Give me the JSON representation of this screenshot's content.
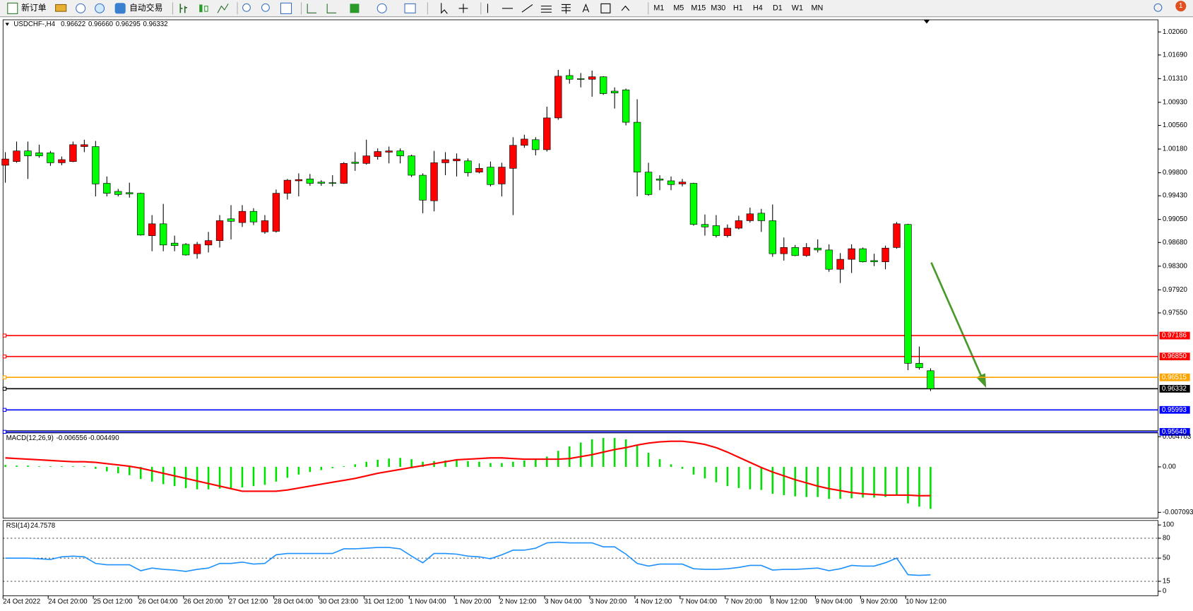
{
  "toolbar": {
    "new_order": "新订单",
    "auto_trading": "自动交易",
    "timeframes": [
      "M1",
      "M5",
      "M15",
      "M30",
      "H1",
      "H4",
      "D1",
      "W1",
      "MN"
    ],
    "alerts": "1"
  },
  "chart_data": [
    {
      "type": "candlestick",
      "title": "USDCHF-,H4",
      "last_high_label": "0.96660",
      "categories": [
        "24 Oct 2022",
        null,
        null,
        null,
        "24 Oct 20:00",
        null,
        null,
        null,
        "25 Oct 12:00",
        null,
        null,
        null,
        "26 Oct 04:00",
        null,
        null,
        null,
        "26 Oct 20:00",
        null,
        null,
        null,
        "27 Oct 12:00",
        null,
        null,
        null,
        "28 Oct 04:00",
        null,
        null,
        null,
        "30 Oct 23:00",
        null,
        null,
        null,
        "31 Oct 12:00",
        null,
        null,
        null,
        "1 Nov 04:00",
        null,
        null,
        null,
        "1 Nov 20:00",
        null,
        null,
        null,
        "2 Nov 12:00",
        null,
        null,
        null,
        "3 Nov 04:00",
        null,
        null,
        null,
        "3 Nov 20:00",
        null,
        null,
        null,
        "4 Nov 12:00",
        null,
        null,
        null,
        "7 Nov 04:00",
        null,
        null,
        null,
        "7 Nov 20:00",
        null,
        null,
        null,
        "8 Nov 12:00",
        null,
        null,
        null,
        "9 Nov 04:00",
        null,
        null,
        null,
        "9 Nov 20:00",
        null,
        null,
        null,
        "10 Nov 12:00",
        null,
        null
      ],
      "open": [
        0.9992,
        0.9998,
        1.0015,
        1.0012,
        1.0012,
        0.9996,
        0.9998,
        1.0022,
        1.0022,
        0.9963,
        0.995,
        0.9948,
        0.9947,
        0.9879,
        0.9898,
        0.9867,
        0.9865,
        0.985,
        0.9864,
        0.9871,
        0.9906,
        0.99,
        0.9918,
        0.9885,
        0.9886,
        0.9947,
        0.9967,
        0.997,
        0.9965,
        0.9964,
        0.9963,
        0.9997,
        0.9995,
        1.0006,
        1.0013,
        1.0015,
        1.0007,
        0.9976,
        0.9935,
        0.9996,
        0.9999,
        0.9999,
        0.9981,
        0.9989,
        0.9962,
        0.9987,
        1.0024,
        1.0033,
        1.0017,
        1.0068,
        1.0136,
        1.0131,
        1.013,
        1.0134,
        1.0111,
        1.0113,
        1.0061,
        0.9981,
        0.997,
        0.9967,
        0.9962,
        0.9963,
        0.9897,
        0.9895,
        0.9879,
        0.9891,
        0.9903,
        0.9915,
        0.9903,
        0.985,
        0.986,
        0.9847,
        0.9859,
        0.9856,
        0.9825,
        0.9841,
        0.9858,
        0.9839,
        0.9837,
        0.986,
        0.9897,
        0.9674,
        0.96622
      ],
      "high": [
        1.0013,
        1.003,
        1.003,
        1.0025,
        1.0015,
        1.0006,
        1.003,
        1.0033,
        1.0031,
        0.9974,
        0.9954,
        0.9964,
        0.9948,
        0.9912,
        0.993,
        0.9879,
        0.9867,
        0.9869,
        0.9885,
        0.9912,
        0.9928,
        0.9928,
        0.9923,
        0.9912,
        0.9953,
        0.997,
        0.9979,
        0.9978,
        0.9968,
        0.9976,
        0.9997,
        1.0013,
        1.0033,
        1.0019,
        1.0022,
        1.0019,
        1.0009,
        0.9979,
        1.0015,
        1.0013,
        1.0011,
        1.0003,
        0.9995,
        0.9998,
        0.9996,
        1.0037,
        1.0041,
        1.0037,
        1.0086,
        1.0145,
        1.0146,
        1.014,
        1.0144,
        1.0135,
        1.0117,
        1.0115,
        1.0098,
        0.9996,
        0.9976,
        0.9974,
        0.997,
        0.9964,
        0.9913,
        0.9912,
        0.9897,
        0.9911,
        0.9924,
        0.9922,
        0.9929,
        0.9876,
        0.9864,
        0.9867,
        0.9873,
        0.9865,
        0.9851,
        0.9865,
        0.986,
        0.985,
        0.9863,
        0.9901,
        0.9898,
        0.9701,
        0.9666
      ],
      "low": [
        0.9964,
        0.9996,
        0.997,
        1.0004,
        0.9991,
        0.9992,
        0.9997,
        1.0013,
        0.9942,
        0.9942,
        0.9942,
        0.994,
        0.9879,
        0.9854,
        0.9854,
        0.9854,
        0.9847,
        0.9842,
        0.9852,
        0.986,
        0.9873,
        0.9893,
        0.9896,
        0.9882,
        0.9884,
        0.9937,
        0.9942,
        0.9959,
        0.9959,
        0.9958,
        0.9962,
        0.9983,
        0.9993,
        1.0001,
        0.9995,
        0.9995,
        0.9973,
        0.9915,
        0.9918,
        0.9976,
        0.9974,
        0.9974,
        0.9979,
        0.9958,
        0.9942,
        0.9912,
        1.002,
        1.0008,
        1.0014,
        1.0065,
        1.0123,
        1.0117,
        1.0102,
        1.0105,
        1.0083,
        1.0056,
        0.9942,
        0.9943,
        0.9952,
        0.9952,
        0.9958,
        0.9895,
        0.9879,
        0.9876,
        0.9876,
        0.9889,
        0.99,
        0.9885,
        0.9845,
        0.9839,
        0.9846,
        0.9845,
        0.9852,
        0.9821,
        0.9803,
        0.9819,
        0.9836,
        0.983,
        0.9825,
        0.9858,
        0.9663,
        0.9664,
        0.96295
      ],
      "close": [
        1.0002,
        1.0015,
        1.0007,
        1.0007,
        0.9996,
        1.0001,
        1.0025,
        1.0025,
        0.9962,
        0.9947,
        0.9945,
        0.9946,
        0.988,
        0.9898,
        0.9864,
        0.9863,
        0.9848,
        0.9865,
        0.9871,
        0.9903,
        0.9902,
        0.9918,
        0.9901,
        0.9903,
        0.9947,
        0.9968,
        0.9969,
        0.9963,
        0.9963,
        0.9963,
        0.9995,
        0.9995,
        1.0007,
        1.0014,
        1.0015,
        1.0007,
        0.9976,
        0.9936,
        0.9996,
        1.0001,
        1.0002,
        0.998,
        0.9987,
        0.9961,
        0.9989,
        1.0024,
        1.0034,
        1.0017,
        1.0068,
        1.0135,
        1.013,
        1.013,
        1.0134,
        1.0107,
        1.0108,
        1.0061,
        0.9981,
        0.9945,
        0.9968,
        0.9961,
        0.9965,
        0.9897,
        0.9893,
        0.9879,
        0.9891,
        0.9903,
        0.9914,
        0.9903,
        0.985,
        0.986,
        0.9847,
        0.986,
        0.9856,
        0.9825,
        0.9841,
        0.9858,
        0.9837,
        0.9837,
        0.9859,
        0.9898,
        0.9674,
        0.9667,
        0.96332
      ],
      "up_color": "#ff0000",
      "down_color": "#00ff00",
      "ylim": [
        0.95647,
        1.02243
      ],
      "yticks": [
        {
          "value": 1.0206,
          "label": "1.02060"
        },
        {
          "value": 1.0169,
          "label": "1.01690"
        },
        {
          "value": 1.0131,
          "label": "1.01310"
        },
        {
          "value": 1.0093,
          "label": "1.00930"
        },
        {
          "value": 1.0056,
          "label": "1.00560"
        },
        {
          "value": 1.0018,
          "label": "1.00180"
        },
        {
          "value": 0.998,
          "label": "0.99800"
        },
        {
          "value": 0.9943,
          "label": "0.99430"
        },
        {
          "value": 0.9905,
          "label": "0.99050"
        },
        {
          "value": 0.9868,
          "label": "0.98680"
        },
        {
          "value": 0.983,
          "label": "0.98300"
        },
        {
          "value": 0.9792,
          "label": "0.97920"
        },
        {
          "value": 0.9755,
          "label": "0.97550"
        }
      ],
      "levels": [
        {
          "value": 0.97186,
          "color": "#ff0000"
        },
        {
          "value": 0.9685,
          "label": "0.96850",
          "color": "#ff0000"
        },
        {
          "value": 0.96515,
          "color": "#ffa500"
        },
        {
          "value": 0.96332,
          "color": "#000000"
        },
        {
          "value": 0.95993,
          "color": "#0000ff"
        },
        {
          "value": 0.9564,
          "label": "0.95640",
          "color": "#0000ff"
        }
      ]
    },
    {
      "type": "macd",
      "title": "MACD(12,26,9)",
      "series": [
        {
          "color": "#00e000",
          "values": [
            0.0003,
            0.0002,
            0.0002,
            0.0001,
            0.0001,
            0.0001,
            0.0001,
            0.0001,
            -0.0003,
            -0.0007,
            -0.001,
            -0.0013,
            -0.0019,
            -0.0023,
            -0.0027,
            -0.003,
            -0.0033,
            -0.0035,
            -0.0035,
            -0.0034,
            -0.0034,
            -0.0032,
            -0.003,
            -0.0028,
            -0.0023,
            -0.0017,
            -0.0012,
            -0.0008,
            -0.0005,
            -0.0002,
            0.0001,
            0.0004,
            0.0008,
            0.0011,
            0.0013,
            0.0014,
            0.0012,
            0.0008,
            0.0009,
            0.001,
            0.001,
            0.0009,
            0.0008,
            0.0006,
            0.0006,
            0.0008,
            0.001,
            0.0011,
            0.0016,
            0.0025,
            0.0032,
            0.0038,
            0.0043,
            0.0045,
            0.0045,
            0.0043,
            0.0034,
            0.0022,
            0.0012,
            0.0004,
            -0.0003,
            -0.0012,
            -0.0018,
            -0.0024,
            -0.003,
            -0.0033,
            -0.0035,
            -0.0036,
            -0.0042,
            -0.0044,
            -0.0046,
            -0.0047,
            -0.0047,
            -0.005,
            -0.005,
            -0.0049,
            -0.0048,
            -0.0048,
            -0.0047,
            -0.0045,
            -0.0057,
            -0.0062,
            -0.006556
          ]
        },
        {
          "color": "#ff0000",
          "last_label": "-0.004490",
          "values": [
            0.0014,
            0.0013,
            0.0012,
            0.0011,
            0.001,
            0.0009,
            0.0008,
            0.0008,
            0.0007,
            0.0005,
            0.0003,
            0.0001,
            -0.0002,
            -0.0006,
            -0.001,
            -0.0014,
            -0.0018,
            -0.0022,
            -0.0026,
            -0.003,
            -0.0034,
            -0.0038,
            -0.0038,
            -0.0038,
            -0.0038,
            -0.0036,
            -0.0033,
            -0.003,
            -0.0027,
            -0.0024,
            -0.0021,
            -0.0018,
            -0.0014,
            -0.001,
            -0.0007,
            -0.0004,
            -0.0001,
            0.0002,
            0.0005,
            0.0008,
            0.0011,
            0.0012,
            0.0013,
            0.0014,
            0.0014,
            0.0013,
            0.0012,
            0.0012,
            0.0012,
            0.0012,
            0.0013,
            0.0016,
            0.0019,
            0.0023,
            0.0027,
            0.003,
            0.0034,
            0.0037,
            0.0039,
            0.004,
            0.004,
            0.0038,
            0.0035,
            0.003,
            0.0023,
            0.0015,
            0.0007,
            -0.0001,
            -0.0008,
            -0.0014,
            -0.002,
            -0.0025,
            -0.003,
            -0.0034,
            -0.0037,
            -0.004,
            -0.0042,
            -0.0043,
            -0.0044,
            -0.0044,
            -0.0044,
            -0.0045,
            -0.00449
          ]
        }
      ],
      "ylim": [
        -0.008,
        0.00529
      ],
      "yticks": [
        0.004703,
        {
          "value": 0,
          "label": "0.00"
        },
        -0.007093
      ]
    },
    {
      "type": "rsi",
      "title": "RSI(14)",
      "series": [
        {
          "color": "#1e90ff",
          "values": [
            50,
            50,
            50,
            49,
            48,
            52,
            53,
            52,
            42,
            40,
            40,
            40,
            31,
            35,
            33,
            32,
            30,
            33,
            35,
            42,
            42,
            44,
            41,
            42,
            55,
            57,
            57,
            57,
            57,
            57,
            64,
            64,
            65,
            66,
            66,
            64,
            53,
            43,
            57,
            57,
            56,
            53,
            52,
            49,
            55,
            62,
            62,
            65,
            73,
            74,
            73,
            73,
            73,
            67,
            67,
            56,
            42,
            38,
            41,
            41,
            41,
            34,
            33,
            33,
            34,
            36,
            39,
            39,
            32,
            33,
            33,
            34,
            35,
            31,
            34,
            39,
            38,
            38,
            43,
            50,
            25,
            24,
            24.7578
          ]
        }
      ],
      "ylim": [
        -6.8,
        106.8
      ],
      "yticks": [
        100,
        80,
        50,
        15,
        0
      ],
      "levels": [
        80,
        50,
        15
      ]
    }
  ]
}
